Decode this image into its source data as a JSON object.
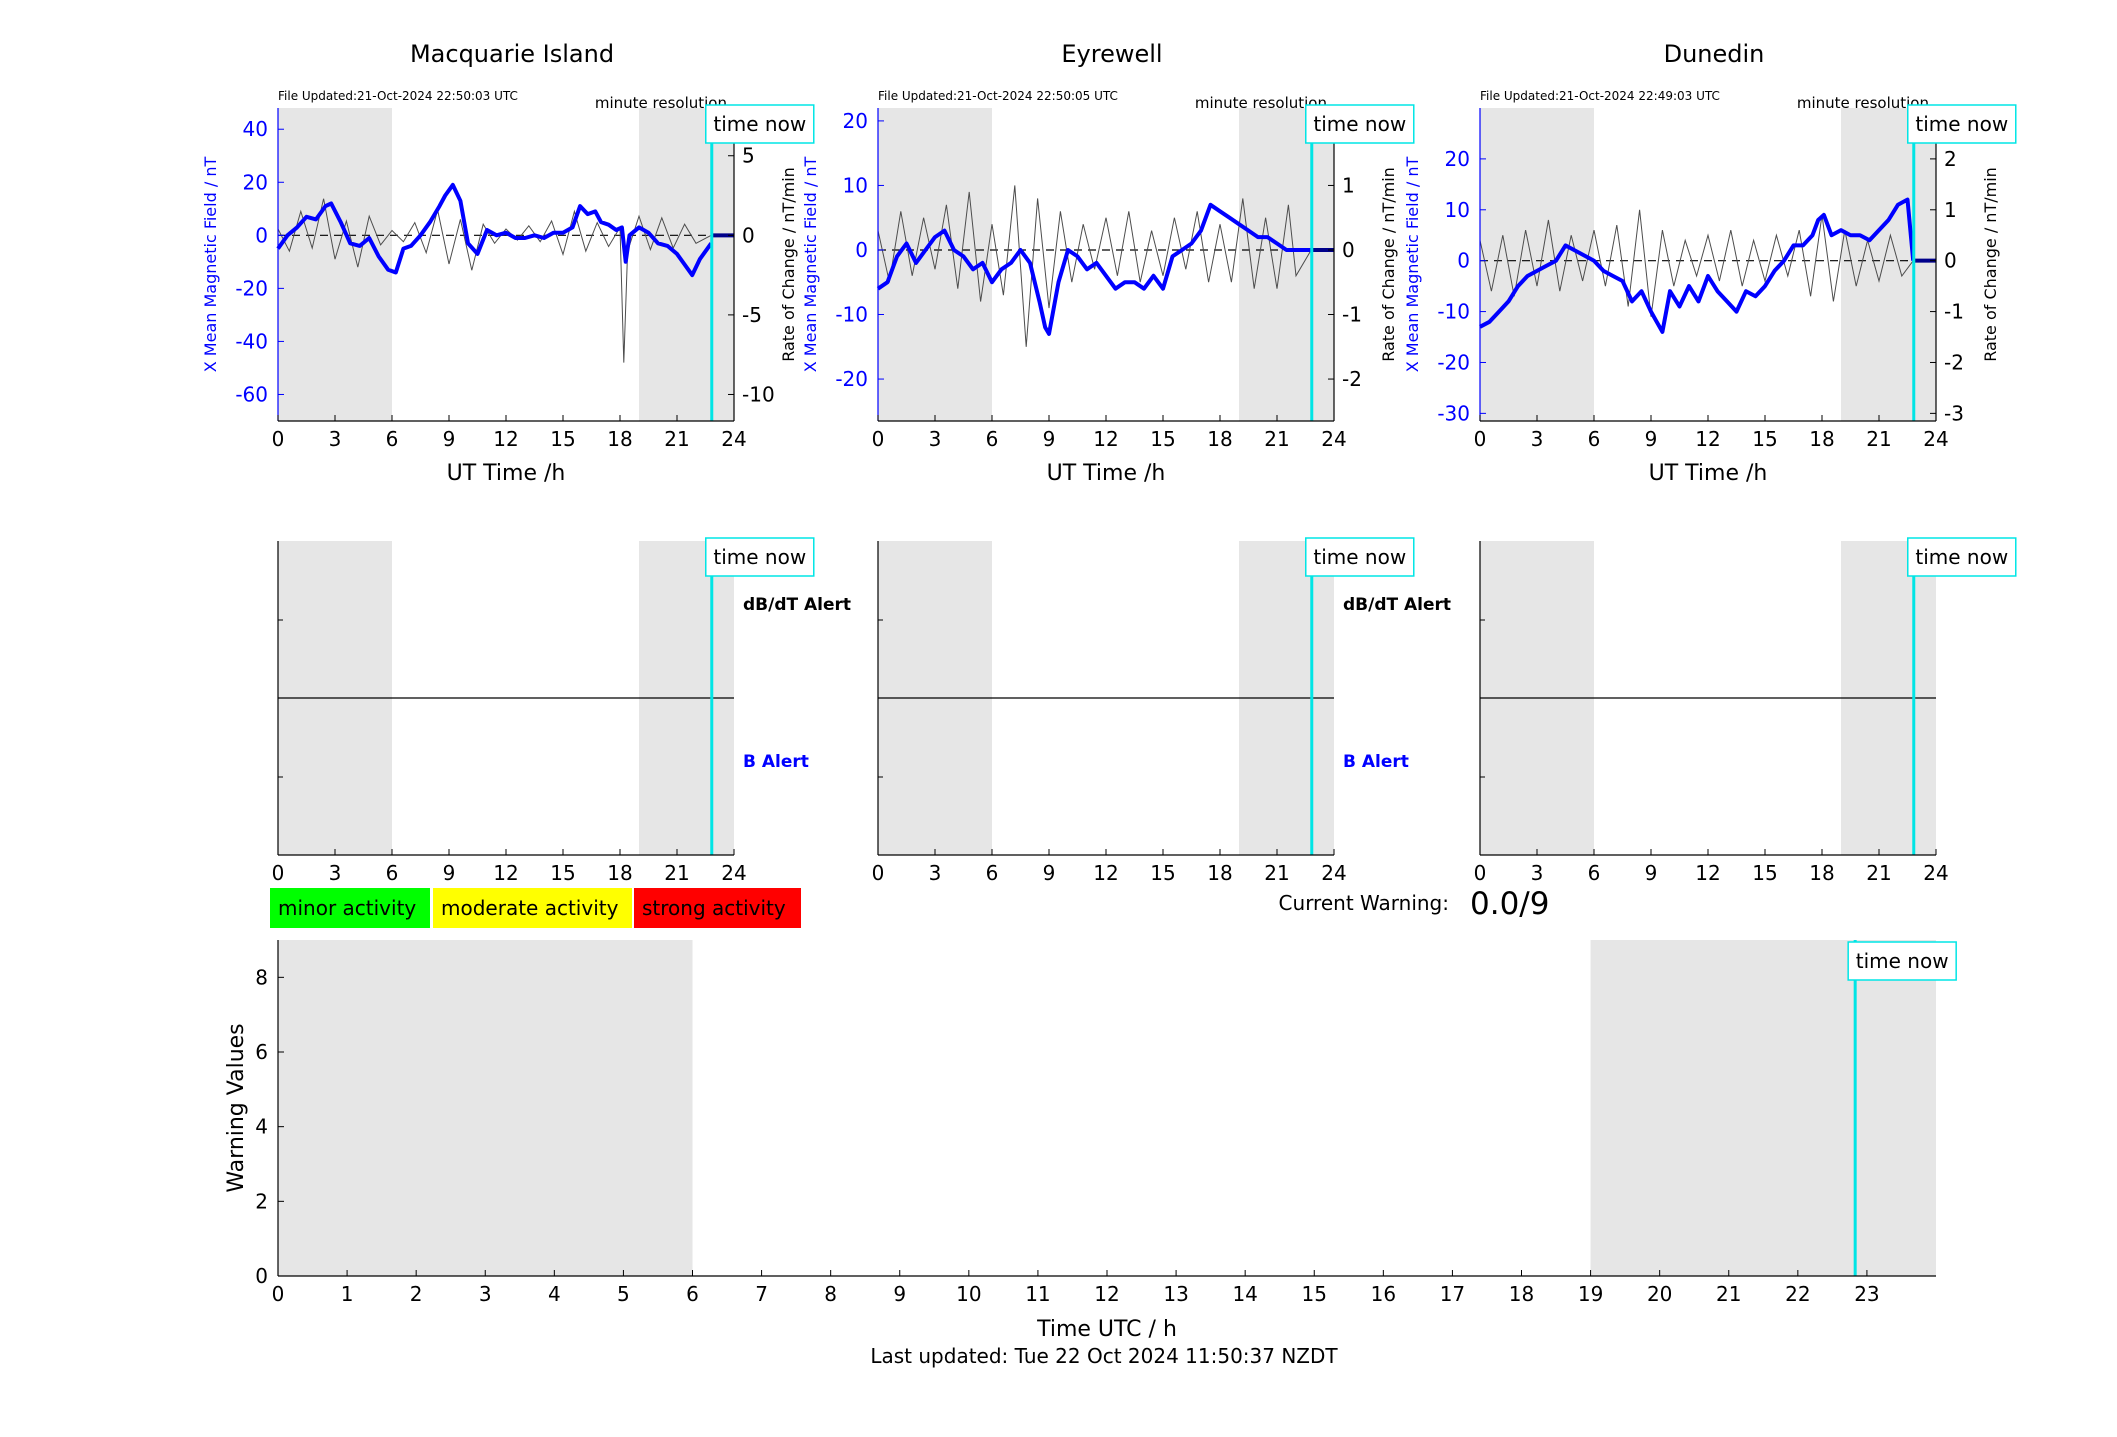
{
  "time_now_label": "time now",
  "x_axis_label_top": "UT Time /h",
  "left_axis_label": "X Mean Magnetic Field / nT",
  "right_axis_label": "Rate of Change / nT/min",
  "resolution_label": "minute resolution",
  "alert_labels": {
    "dbdt": "dB/dT Alert",
    "b": "B Alert"
  },
  "legend": [
    {
      "label": "minor activity",
      "color": "#00ff00"
    },
    {
      "label": "moderate activity",
      "color": "#ffff00"
    },
    {
      "label": "strong activity",
      "color": "#ff0000"
    }
  ],
  "current_warning": {
    "label": "Current Warning:",
    "value": "0.0/9"
  },
  "footer": "Last updated: Tue 22 Oct 2024 11:50:37 NZDT",
  "colors": {
    "field": "#0000ff",
    "rate": "#4d4d4d",
    "time_now": "#00e5e5",
    "night_shade": "#e6e6e6"
  },
  "chart_data": [
    {
      "type": "line",
      "title": "Macquarie Island",
      "file_updated": "File Updated:21-Oct-2024 22:50:03 UTC",
      "xlabel": "UT Time /h",
      "ylabel": "X Mean Magnetic Field / nT",
      "ylabel_right": "Rate of Change / nT/min",
      "xlim": [
        0,
        24
      ],
      "ylim": [
        -70,
        48
      ],
      "ylim_right": [
        -11.667,
        8
      ],
      "x_ticks": [
        "0",
        "3",
        "6",
        "9",
        "12",
        "15",
        "18",
        "21",
        "24"
      ],
      "y_ticks": [
        "40",
        "20",
        "0",
        "-20",
        "-40",
        "-60"
      ],
      "y_ticks_right": [
        "5",
        "0",
        "-5",
        "-10"
      ],
      "shaded_hours": [
        [
          0,
          6
        ],
        [
          19,
          24
        ]
      ],
      "time_now_hour": 22.83,
      "series": [
        {
          "name": "X Mean Magnetic Field",
          "x": [
            0,
            0.5,
            1,
            1.5,
            2,
            2.5,
            2.8,
            3.3,
            3.8,
            4.3,
            4.8,
            5.3,
            5.8,
            6.2,
            6.6,
            7,
            7.5,
            8,
            8.5,
            8.8,
            9.2,
            9.6,
            10,
            10.5,
            11,
            11.5,
            12,
            12.5,
            13,
            13.5,
            14,
            14.5,
            15,
            15.5,
            15.9,
            16.3,
            16.7,
            17,
            17.4,
            17.8,
            18.1,
            18.3,
            18.5,
            19,
            19.5,
            20,
            20.5,
            21,
            21.4,
            21.8,
            22.2,
            22.8
          ],
          "y": [
            -5,
            0,
            3,
            7,
            6,
            11,
            12,
            5,
            -3,
            -4,
            -1,
            -8,
            -13,
            -14,
            -5,
            -4,
            0,
            5,
            11,
            15,
            19,
            13,
            -3,
            -7,
            2,
            0,
            1,
            -1,
            -1,
            0,
            -1,
            1,
            1,
            3,
            11,
            8,
            9,
            5,
            4,
            2,
            3,
            -10,
            0,
            3,
            1,
            -3,
            -4,
            -7,
            -11,
            -15,
            -9,
            -3
          ]
        },
        {
          "name": "Rate of Change",
          "x": [
            0,
            0.6,
            1.2,
            1.8,
            2.4,
            3,
            3.6,
            4.2,
            4.8,
            5.4,
            6,
            6.6,
            7.2,
            7.8,
            8.4,
            9,
            9.6,
            10.2,
            10.8,
            11.4,
            12,
            12.6,
            13.2,
            13.8,
            14.4,
            15,
            15.6,
            16.2,
            16.8,
            17.4,
            18,
            18.2,
            18.4,
            19,
            19.6,
            20.2,
            20.8,
            21.4,
            22,
            22.8
          ],
          "y": [
            0.4,
            -1.0,
            1.5,
            -0.8,
            2.3,
            -1.5,
            0.9,
            -2.0,
            1.2,
            -0.6,
            0.3,
            -0.4,
            0.8,
            -1.1,
            1.6,
            -1.8,
            1.0,
            -2.2,
            0.7,
            -0.5,
            0.4,
            -0.3,
            0.6,
            -0.4,
            0.9,
            -1.2,
            1.5,
            -1.0,
            0.8,
            -0.7,
            0.5,
            -8.0,
            -1.0,
            1.2,
            -0.9,
            1.1,
            -0.8,
            0.7,
            -0.5,
            0
          ]
        }
      ]
    },
    {
      "type": "line",
      "title": "Eyrewell",
      "file_updated": "File Updated:21-Oct-2024 22:50:05 UTC",
      "xlabel": "UT Time /h",
      "ylabel": "X Mean Magnetic Field / nT",
      "ylabel_right": "Rate of Change / nT/min",
      "xlim": [
        0,
        24
      ],
      "ylim": [
        -26.5,
        22
      ],
      "ylim_right": [
        -2.65,
        2.2
      ],
      "x_ticks": [
        "0",
        "3",
        "6",
        "9",
        "12",
        "15",
        "18",
        "21",
        "24"
      ],
      "y_ticks": [
        "20",
        "10",
        "0",
        "-10",
        "-20"
      ],
      "y_ticks_right": [
        "2",
        "1",
        "0",
        "-1",
        "-2"
      ],
      "shaded_hours": [
        [
          0,
          6
        ],
        [
          19,
          24
        ]
      ],
      "time_now_hour": 22.83,
      "series": [
        {
          "name": "X Mean Magnetic Field",
          "x": [
            0,
            0.5,
            1,
            1.5,
            2,
            2.5,
            3,
            3.5,
            4,
            4.5,
            5,
            5.5,
            6,
            6.5,
            7,
            7.5,
            8,
            8.5,
            8.8,
            9,
            9.5,
            10,
            10.5,
            11,
            11.5,
            12,
            12.5,
            13,
            13.5,
            14,
            14.5,
            15,
            15.5,
            16,
            16.5,
            17,
            17.5,
            18,
            18.5,
            19,
            19.5,
            20,
            20.5,
            21,
            21.5,
            22,
            22.8
          ],
          "y": [
            -6,
            -5,
            -1,
            1,
            -2,
            0,
            2,
            3,
            0,
            -1,
            -3,
            -2,
            -5,
            -3,
            -2,
            0,
            -2,
            -8,
            -12,
            -13,
            -5,
            0,
            -1,
            -3,
            -2,
            -4,
            -6,
            -5,
            -5,
            -6,
            -4,
            -6,
            -1,
            0,
            1,
            3,
            7,
            6,
            5,
            4,
            3,
            2,
            2,
            1,
            0,
            0,
            0
          ]
        },
        {
          "name": "Rate of Change",
          "x": [
            0,
            0.6,
            1.2,
            1.8,
            2.4,
            3,
            3.6,
            4.2,
            4.8,
            5.4,
            6,
            6.6,
            7.2,
            7.8,
            8.4,
            9,
            9.6,
            10.2,
            10.8,
            11.4,
            12,
            12.6,
            13.2,
            13.8,
            14.4,
            15,
            15.6,
            16.2,
            16.8,
            17.4,
            18,
            18.6,
            19.2,
            19.8,
            20.4,
            21,
            21.6,
            22,
            22.8
          ],
          "y": [
            0.3,
            -0.5,
            0.6,
            -0.4,
            0.5,
            -0.3,
            0.7,
            -0.6,
            0.9,
            -0.8,
            0.4,
            -0.7,
            1.0,
            -1.5,
            0.8,
            -0.9,
            0.6,
            -0.5,
            0.4,
            -0.3,
            0.5,
            -0.4,
            0.6,
            -0.5,
            0.3,
            -0.4,
            0.5,
            -0.3,
            0.6,
            -0.5,
            0.4,
            -0.5,
            0.8,
            -0.6,
            0.5,
            -0.6,
            0.7,
            -0.4,
            0
          ]
        }
      ]
    },
    {
      "type": "line",
      "title": "Dunedin",
      "file_updated": "File Updated:21-Oct-2024 22:49:03 UTC",
      "xlabel": "UT Time /h",
      "ylabel": "X Mean Magnetic Field / nT",
      "ylabel_right": "Rate of Change / nT/min",
      "xlim": [
        0,
        24
      ],
      "ylim": [
        -31.5,
        30
      ],
      "ylim_right": [
        -3.15,
        3
      ],
      "x_ticks": [
        "0",
        "3",
        "6",
        "9",
        "12",
        "15",
        "18",
        "21",
        "24"
      ],
      "y_ticks": [
        "20",
        "10",
        "0",
        "-10",
        "-20",
        "-30"
      ],
      "y_ticks_right": [
        "2",
        "1",
        "0",
        "-1",
        "-2",
        "-3"
      ],
      "shaded_hours": [
        [
          0,
          6
        ],
        [
          19,
          24
        ]
      ],
      "time_now_hour": 22.83,
      "series": [
        {
          "name": "X Mean Magnetic Field",
          "x": [
            0,
            0.5,
            1,
            1.5,
            2,
            2.5,
            3,
            3.5,
            4,
            4.5,
            5,
            5.5,
            6,
            6.5,
            7,
            7.5,
            8,
            8.5,
            9,
            9.3,
            9.6,
            10,
            10.5,
            11,
            11.5,
            12,
            12.5,
            13,
            13.5,
            14,
            14.5,
            15,
            15.5,
            16,
            16.5,
            17,
            17.5,
            17.8,
            18.1,
            18.5,
            19,
            19.5,
            20,
            20.5,
            21,
            21.5,
            22,
            22.5,
            22.8
          ],
          "y": [
            -13,
            -12,
            -10,
            -8,
            -5,
            -3,
            -2,
            -1,
            0,
            3,
            2,
            1,
            0,
            -2,
            -3,
            -4,
            -8,
            -6,
            -10,
            -12,
            -14,
            -6,
            -9,
            -5,
            -8,
            -3,
            -6,
            -8,
            -10,
            -6,
            -7,
            -5,
            -2,
            0,
            3,
            3,
            5,
            8,
            9,
            5,
            6,
            5,
            5,
            4,
            6,
            8,
            11,
            12,
            0
          ]
        },
        {
          "name": "Rate of Change",
          "x": [
            0,
            0.6,
            1.2,
            1.8,
            2.4,
            3,
            3.6,
            4.2,
            4.8,
            5.4,
            6,
            6.6,
            7.2,
            7.8,
            8.4,
            9,
            9.6,
            10.2,
            10.8,
            11.4,
            12,
            12.6,
            13.2,
            13.8,
            14.4,
            15,
            15.6,
            16.2,
            16.8,
            17.4,
            18,
            18.6,
            19.2,
            19.8,
            20.4,
            21,
            21.6,
            22.2,
            22.8
          ],
          "y": [
            0.4,
            -0.6,
            0.5,
            -0.7,
            0.6,
            -0.5,
            0.8,
            -0.6,
            0.5,
            -0.4,
            0.6,
            -0.5,
            0.7,
            -0.9,
            1.0,
            -1.1,
            0.6,
            -0.5,
            0.4,
            -0.3,
            0.5,
            -0.4,
            0.6,
            -0.5,
            0.4,
            -0.4,
            0.5,
            -0.3,
            0.6,
            -0.7,
            0.9,
            -0.8,
            0.6,
            -0.5,
            0.4,
            -0.4,
            0.5,
            -0.3,
            0
          ]
        }
      ]
    },
    {
      "type": "line",
      "title": "",
      "xlabel": "Time UTC / h",
      "ylabel": "Warning Values",
      "xlim": [
        0,
        24
      ],
      "ylim": [
        0,
        9
      ],
      "x_ticks": [
        "0",
        "1",
        "2",
        "3",
        "4",
        "5",
        "6",
        "7",
        "8",
        "9",
        "10",
        "11",
        "12",
        "13",
        "14",
        "15",
        "16",
        "17",
        "18",
        "19",
        "20",
        "21",
        "22",
        "23"
      ],
      "y_ticks": [
        "0",
        "2",
        "4",
        "6",
        "8"
      ],
      "shaded_hours": [
        [
          0,
          6
        ],
        [
          19,
          24
        ]
      ],
      "time_now_hour": 22.83,
      "series": []
    }
  ]
}
